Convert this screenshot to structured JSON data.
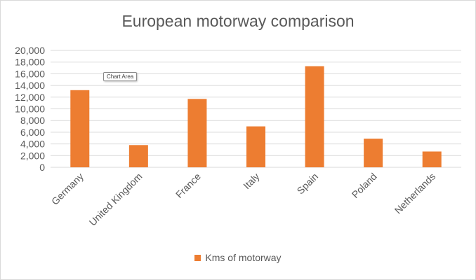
{
  "chart_data": {
    "type": "bar",
    "title": "European motorway comparison",
    "categories": [
      "Germany",
      "United Kingdom",
      "France",
      "Italy",
      "Spain",
      "Poland",
      "Netherlands"
    ],
    "series": [
      {
        "name": "Kms of motorway",
        "values": [
          13200,
          3800,
          11700,
          7000,
          17300,
          4900,
          2700
        ],
        "color": "#ed7d31"
      }
    ],
    "ylim": [
      0,
      20000
    ],
    "yticks": [
      "0",
      "2,000",
      "4,000",
      "6,000",
      "8,000",
      "10,000",
      "12,000",
      "14,000",
      "16,000",
      "18,000",
      "20,000"
    ],
    "ytick_values": [
      0,
      2000,
      4000,
      6000,
      8000,
      10000,
      12000,
      14000,
      16000,
      18000,
      20000
    ],
    "grid": true,
    "gridline_color": "#d9d9d9",
    "legend_position": "bottom"
  },
  "tooltip": {
    "text": "Chart Area"
  }
}
